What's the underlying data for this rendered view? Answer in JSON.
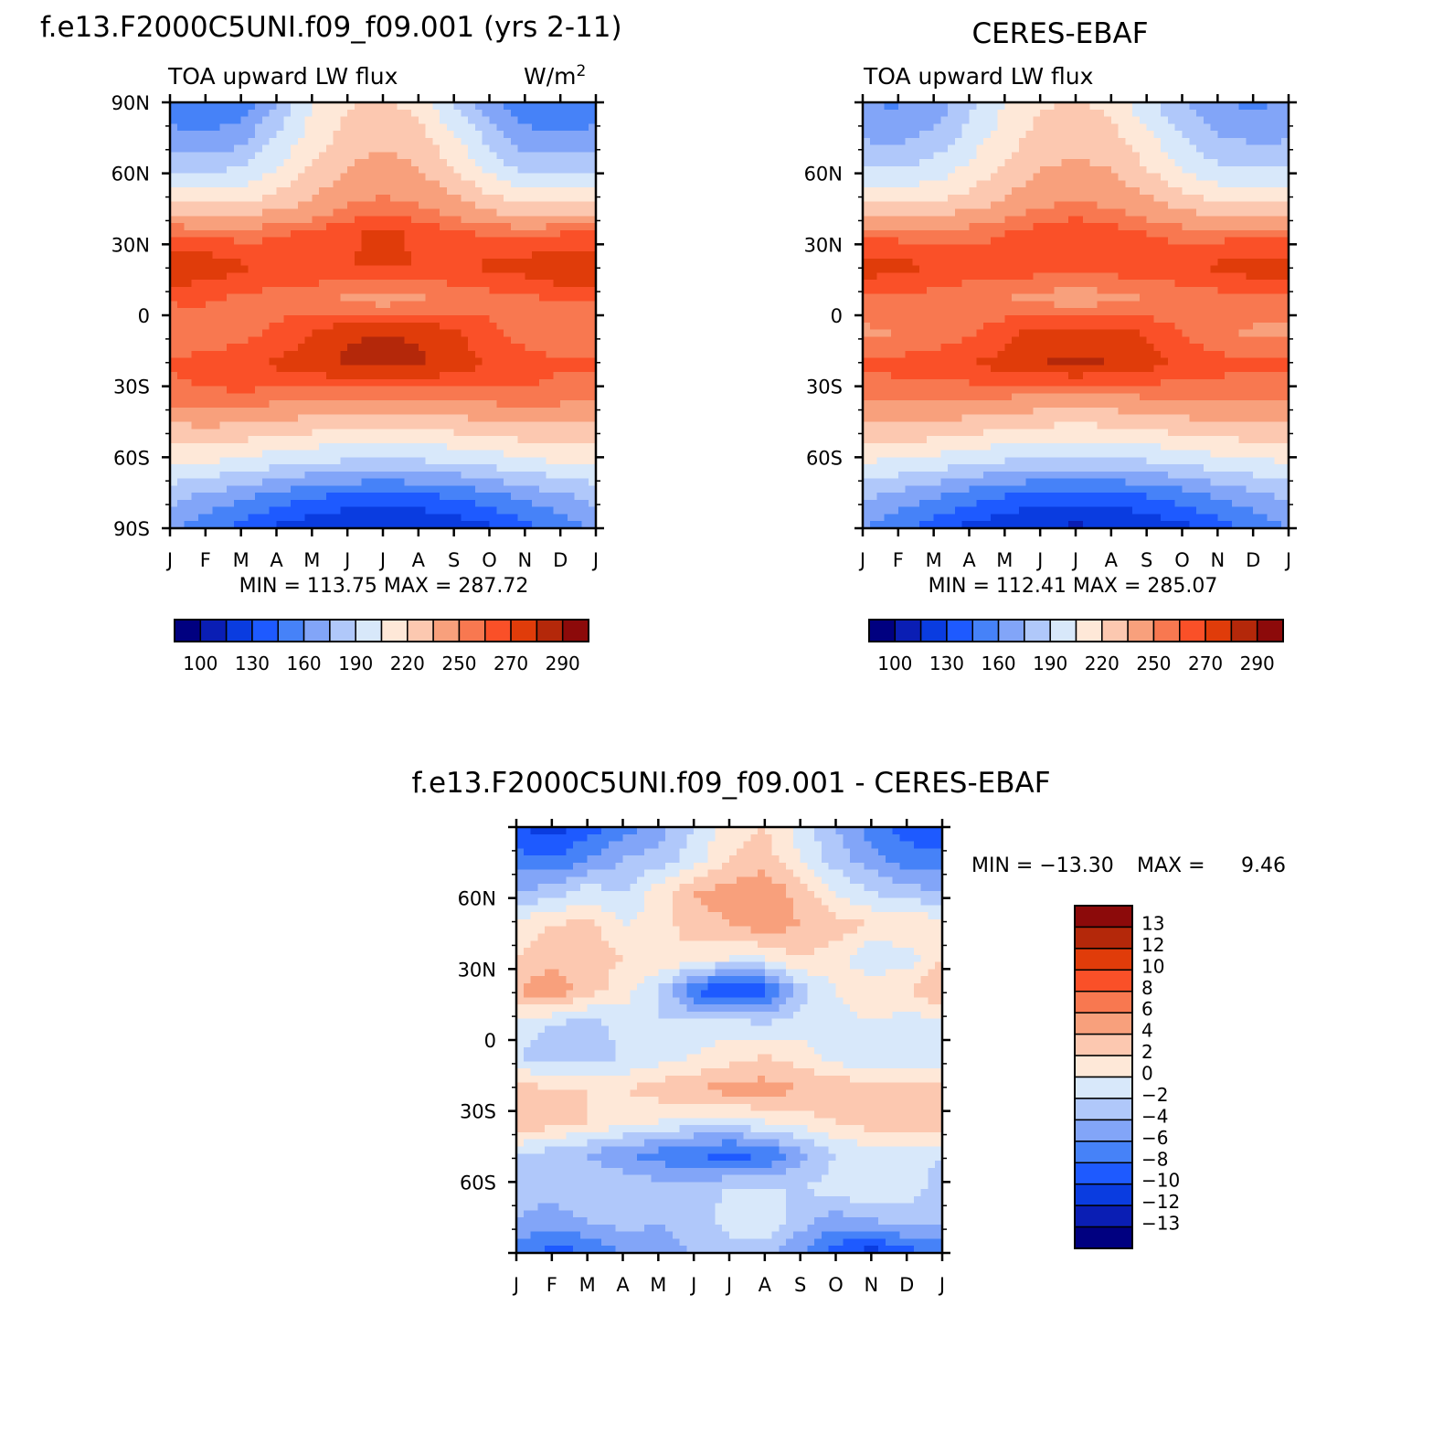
{
  "chart_data": [
    {
      "type": "heatmap",
      "title": "f.e13.F2000C5UNI.f09_f09.001 (yrs 2-11)",
      "subtitle_left": "TOA upward LW flux",
      "units_label": "W/m",
      "units_exp": "2",
      "x_labels": [
        "J",
        "F",
        "M",
        "A",
        "M",
        "J",
        "J",
        "A",
        "S",
        "O",
        "N",
        "D",
        "J"
      ],
      "y_labels": [
        "90N",
        "60N",
        "30N",
        "0",
        "30S",
        "60S",
        "90S"
      ],
      "y_values": [
        90,
        60,
        30,
        0,
        -30,
        -60,
        -90
      ],
      "ylim": [
        -90,
        90
      ],
      "stats": "MIN = 113.75 MAX = 287.72",
      "colorbar_labels": [
        "100",
        "130",
        "160",
        "190",
        "220",
        "250",
        "270",
        "290"
      ],
      "legend_placement": "bottom",
      "grid": [
        [
          150,
          145,
          150,
          175,
          205,
          218,
          222,
          215,
          190,
          165,
          150,
          145,
          150
        ],
        [
          165,
          160,
          168,
          190,
          210,
          225,
          232,
          225,
          205,
          185,
          165,
          160,
          165
        ],
        [
          185,
          185,
          190,
          205,
          222,
          235,
          240,
          235,
          220,
          200,
          185,
          185,
          185
        ],
        [
          215,
          215,
          218,
          225,
          235,
          248,
          252,
          248,
          238,
          225,
          215,
          215,
          215
        ],
        [
          260,
          258,
          256,
          258,
          262,
          268,
          272,
          268,
          262,
          258,
          258,
          260,
          260
        ],
        [
          280,
          278,
          272,
          268,
          270,
          270,
          272,
          270,
          270,
          272,
          275,
          280,
          280
        ],
        [
          262,
          262,
          258,
          256,
          252,
          248,
          242,
          248,
          252,
          256,
          258,
          262,
          262
        ],
        [
          250,
          252,
          255,
          262,
          270,
          278,
          280,
          278,
          272,
          262,
          255,
          250,
          250
        ],
        [
          262,
          265,
          268,
          272,
          276,
          282,
          284,
          282,
          276,
          270,
          265,
          262,
          262
        ],
        [
          255,
          258,
          258,
          256,
          254,
          252,
          252,
          252,
          254,
          256,
          258,
          255,
          255
        ],
        [
          230,
          232,
          230,
          226,
          222,
          218,
          216,
          218,
          222,
          226,
          230,
          230,
          230
        ],
        [
          208,
          205,
          200,
          195,
          190,
          188,
          186,
          188,
          190,
          195,
          200,
          205,
          208
        ],
        [
          180,
          172,
          165,
          155,
          148,
          142,
          140,
          142,
          148,
          155,
          165,
          172,
          180
        ],
        [
          165,
          150,
          140,
          128,
          118,
          114,
          113,
          114,
          118,
          128,
          140,
          150,
          165
        ]
      ]
    },
    {
      "type": "heatmap",
      "title": "CERES-EBAF",
      "subtitle_left": "TOA upward LW flux",
      "x_labels": [
        "J",
        "F",
        "M",
        "A",
        "M",
        "J",
        "J",
        "A",
        "S",
        "O",
        "N",
        "D",
        "J"
      ],
      "y_labels": [
        "60N",
        "30N",
        "0",
        "30S",
        "60S"
      ],
      "y_values": [
        60,
        30,
        0,
        -30,
        -60
      ],
      "ylim": [
        -90,
        90
      ],
      "stats": "MIN = 112.41 MAX = 285.07",
      "colorbar_labels": [
        "100",
        "130",
        "160",
        "190",
        "220",
        "250",
        "270",
        "290"
      ],
      "legend_placement": "bottom",
      "grid": [
        [
          160,
          158,
          165,
          185,
          205,
          218,
          222,
          215,
          195,
          175,
          160,
          158,
          160
        ],
        [
          172,
          170,
          178,
          195,
          212,
          225,
          230,
          225,
          208,
          190,
          175,
          170,
          172
        ],
        [
          190,
          190,
          195,
          208,
          222,
          234,
          238,
          234,
          220,
          205,
          192,
          190,
          190
        ],
        [
          215,
          215,
          218,
          226,
          236,
          246,
          250,
          246,
          238,
          226,
          218,
          215,
          215
        ],
        [
          258,
          256,
          255,
          256,
          260,
          265,
          268,
          265,
          260,
          256,
          256,
          258,
          258
        ],
        [
          276,
          274,
          270,
          266,
          266,
          266,
          268,
          266,
          266,
          268,
          272,
          276,
          276
        ],
        [
          258,
          258,
          256,
          254,
          250,
          246,
          242,
          246,
          250,
          254,
          256,
          258,
          258
        ],
        [
          248,
          250,
          252,
          258,
          266,
          274,
          276,
          274,
          268,
          260,
          252,
          248,
          248
        ],
        [
          262,
          264,
          266,
          270,
          274,
          280,
          282,
          280,
          274,
          268,
          264,
          262,
          262
        ],
        [
          252,
          254,
          254,
          252,
          250,
          248,
          248,
          248,
          250,
          252,
          254,
          252,
          252
        ],
        [
          228,
          230,
          228,
          224,
          220,
          216,
          214,
          216,
          220,
          224,
          228,
          228,
          228
        ],
        [
          205,
          202,
          198,
          192,
          188,
          185,
          184,
          185,
          188,
          192,
          198,
          202,
          205
        ],
        [
          178,
          170,
          162,
          152,
          146,
          140,
          138,
          140,
          146,
          152,
          162,
          170,
          178
        ],
        [
          162,
          148,
          138,
          126,
          116,
          113,
          112,
          113,
          116,
          126,
          138,
          148,
          162
        ]
      ]
    },
    {
      "type": "heatmap",
      "title": "f.e13.F2000C5UNI.f09_f09.001 - CERES-EBAF",
      "x_labels": [
        "J",
        "F",
        "M",
        "A",
        "M",
        "J",
        "J",
        "A",
        "S",
        "O",
        "N",
        "D",
        "J"
      ],
      "y_labels": [
        "60N",
        "30N",
        "0",
        "30S",
        "60S"
      ],
      "y_values": [
        60,
        30,
        0,
        -30,
        -60
      ],
      "ylim": [
        -90,
        90
      ],
      "stats_min_label": "MIN = -13.30",
      "stats_max_label": "MAX =",
      "stats_max_value": "9.46",
      "colorbar_labels": [
        "13",
        "12",
        "10",
        "8",
        "6",
        "4",
        "2",
        "0",
        "-2",
        "-4",
        "-6",
        "-8",
        "-10",
        "-12",
        "-13"
      ],
      "legend_placement": "right",
      "grid": [
        [
          -10,
          -11,
          -9,
          -7,
          -5,
          -2,
          1,
          2,
          -1,
          -4,
          -7,
          -9,
          -10
        ],
        [
          -7,
          -8,
          -6,
          -4,
          -3,
          -1,
          2,
          3,
          0,
          -3,
          -5,
          -7,
          -7
        ],
        [
          -4,
          -3,
          -1,
          -2,
          1,
          4,
          5,
          6,
          3,
          0,
          -2,
          -3,
          -4
        ],
        [
          1,
          2,
          3,
          0,
          1,
          3,
          4,
          5,
          4,
          3,
          2,
          2,
          1
        ],
        [
          2,
          3,
          3,
          2,
          2,
          1,
          0,
          0,
          2,
          1,
          -2,
          -1,
          2
        ],
        [
          4,
          6,
          3,
          1,
          -2,
          -8,
          -11,
          -9,
          -3,
          0,
          2,
          2,
          4
        ],
        [
          -1,
          -2,
          -3,
          -1,
          -2,
          -1,
          -1,
          -2,
          -1,
          -1,
          0,
          -1,
          -1
        ],
        [
          -2,
          -3,
          -3,
          -2,
          -1,
          0,
          1,
          2,
          1,
          -1,
          -2,
          -2,
          -2
        ],
        [
          3,
          2,
          2,
          2,
          3,
          4,
          5,
          5,
          4,
          4,
          3,
          3,
          3
        ],
        [
          4,
          3,
          2,
          1,
          0,
          -1,
          -1,
          0,
          1,
          2,
          3,
          3,
          4
        ],
        [
          -2,
          -3,
          -4,
          -6,
          -7,
          -8,
          -9,
          -8,
          -5,
          -2,
          -1,
          -1,
          -2
        ],
        [
          -3,
          -3,
          -2,
          -2,
          -3,
          -3,
          -2,
          -2,
          -2,
          -1,
          0,
          -1,
          -3
        ],
        [
          -4,
          -5,
          -4,
          -3,
          -4,
          -3,
          -1,
          0,
          -3,
          -5,
          -4,
          -3,
          -4
        ],
        [
          -7,
          -9,
          -8,
          -6,
          -5,
          -4,
          -3,
          -3,
          -6,
          -9,
          -11,
          -9,
          -7
        ]
      ]
    }
  ],
  "colors": {
    "abs_scale": [
      "#000080",
      "#0a1eb4",
      "#0a3ce0",
      "#1e5aff",
      "#4682f8",
      "#82a5f8",
      "#b0c8fa",
      "#d8e8fa",
      "#fee8d8",
      "#fcc8b0",
      "#f8a07c",
      "#f87850",
      "#fa5028",
      "#e03c0a",
      "#b4280a",
      "#8c0a0a"
    ],
    "diff_scale": [
      "#000080",
      "#0a1eb4",
      "#0a3ce0",
      "#1e5aff",
      "#4682f8",
      "#82a5f8",
      "#b0c8fa",
      "#d8e8fa",
      "#fee8d8",
      "#fcc8b0",
      "#f8a07c",
      "#f87850",
      "#fa5028",
      "#e03c0a",
      "#b4280a",
      "#8c0a0a"
    ]
  }
}
